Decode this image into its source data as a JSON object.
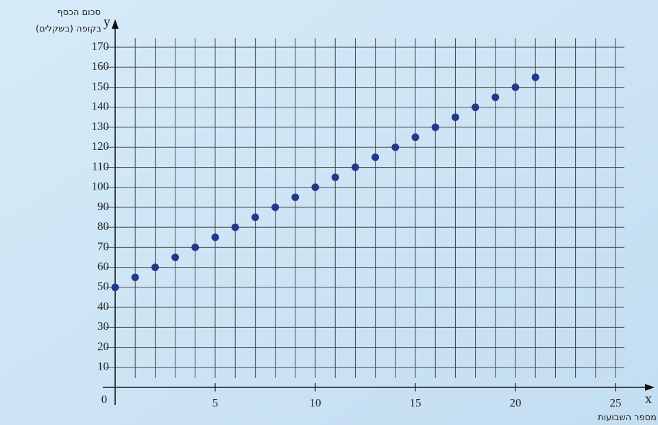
{
  "chart_data": {
    "type": "scatter",
    "y_label": [
      "סכום הכסף",
      "בקופה (בשקלים)"
    ],
    "x_label": "מספר השבועות",
    "x_axis_letter": "x",
    "y_axis_letter": "y",
    "x": [
      0,
      1,
      2,
      3,
      4,
      5,
      6,
      7,
      8,
      9,
      10,
      11,
      12,
      13,
      14,
      15,
      16,
      17,
      18,
      19,
      20,
      21
    ],
    "series": [
      {
        "color": "#1f3a8a",
        "values": [
          50,
          55,
          60,
          65,
          70,
          75,
          80,
          85,
          90,
          95,
          100,
          105,
          110,
          115,
          120,
          125,
          130,
          135,
          140,
          145,
          150,
          155
        ]
      }
    ],
    "xlim": [
      0,
      25
    ],
    "ylim": [
      0,
      170
    ],
    "xticks": [
      0,
      5,
      10,
      15,
      20,
      25
    ],
    "yticks": [
      10,
      20,
      30,
      40,
      50,
      60,
      70,
      80,
      90,
      100,
      110,
      120,
      130,
      140,
      150,
      160,
      170
    ],
    "xgrid": [
      1,
      2,
      3,
      4,
      5,
      6,
      7,
      8,
      9,
      10,
      11,
      12,
      13,
      14,
      15,
      16,
      17,
      18,
      19,
      20,
      21,
      22,
      23,
      24,
      25
    ],
    "grid": true
  }
}
